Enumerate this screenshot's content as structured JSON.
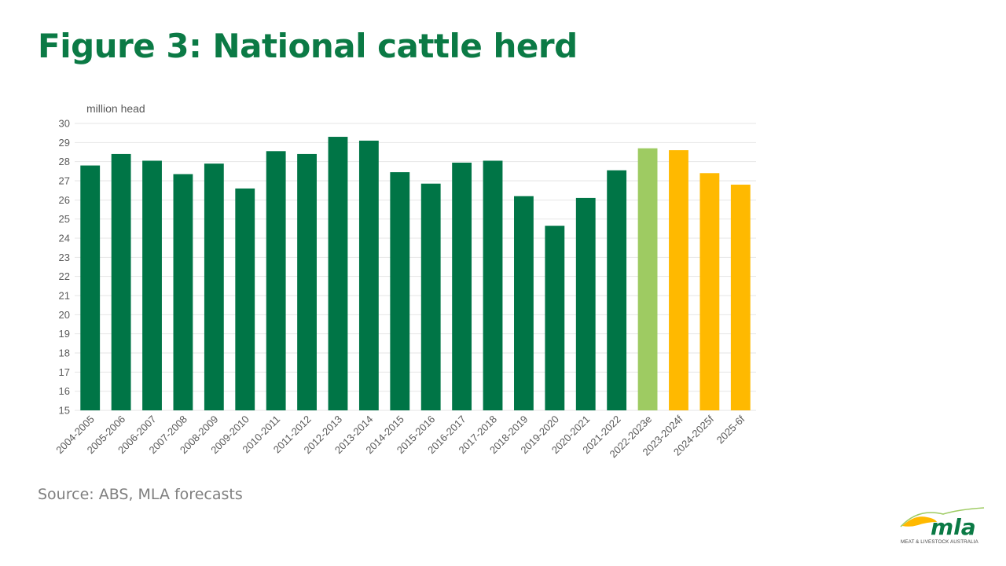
{
  "title": "Figure 3: National cattle herd",
  "source": "Source: ABS, MLA forecasts",
  "logo": {
    "wordmark": "mla",
    "tagline": "MEAT & LIVESTOCK AUSTRALIA"
  },
  "colors": {
    "title": "#0b7a45",
    "actual": "#007546",
    "estimate": "#9ecb62",
    "forecast": "#ffb900",
    "grid": "#e6e6e6",
    "tick": "#595959"
  },
  "chart_data": {
    "type": "bar",
    "ylabel": "million head",
    "ylim": [
      15,
      30
    ],
    "yticks": [
      15,
      16,
      17,
      18,
      19,
      20,
      21,
      22,
      23,
      24,
      25,
      26,
      27,
      28,
      29,
      30
    ],
    "grid": true,
    "categories": [
      "2004-2005",
      "2005-2006",
      "2006-2007",
      "2007-2008",
      "2008-2009",
      "2009-2010",
      "2010-2011",
      "2011-2012",
      "2012-2013",
      "2013-2014",
      "2014-2015",
      "2015-2016",
      "2016-2017",
      "2017-2018",
      "2018-2019",
      "2019-2020",
      "2020-2021",
      "2021-2022",
      "2022-2023e",
      "2023-2024f",
      "2024-2025f",
      "2025-6f"
    ],
    "values": [
      27.8,
      28.4,
      28.05,
      27.35,
      27.9,
      26.6,
      28.55,
      28.4,
      29.3,
      29.1,
      27.45,
      26.85,
      27.95,
      28.05,
      26.2,
      24.65,
      26.1,
      27.55,
      28.7,
      28.6,
      27.4,
      26.8
    ],
    "bar_colors": [
      "actual",
      "actual",
      "actual",
      "actual",
      "actual",
      "actual",
      "actual",
      "actual",
      "actual",
      "actual",
      "actual",
      "actual",
      "actual",
      "actual",
      "actual",
      "actual",
      "actual",
      "actual",
      "estimate",
      "forecast",
      "forecast",
      "forecast"
    ]
  }
}
